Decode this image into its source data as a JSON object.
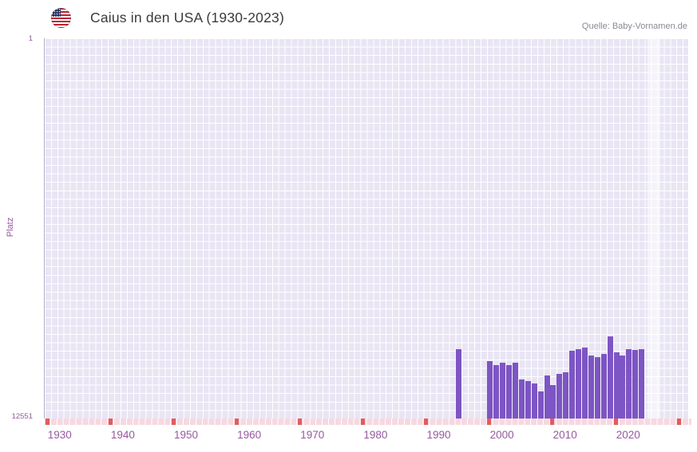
{
  "header": {
    "title": "Caius in den USA (1930-2023)",
    "source": "Quelle: Baby-Vornamen.de",
    "flag_icon": "us-flag-icon"
  },
  "chart_data": {
    "type": "bar",
    "title": "Caius in den USA (1930-2023)",
    "xlabel": "",
    "ylabel": "Platz",
    "y_axis_inverted": true,
    "ylim": [
      1,
      12551
    ],
    "y_tick_labels": [
      "1",
      "12551"
    ],
    "x_ticks": [
      1930,
      1940,
      1950,
      1960,
      1970,
      1980,
      1990,
      2000,
      2010,
      2020
    ],
    "x_range": [
      1927.5,
      2029.5
    ],
    "grid": true,
    "legend": "none",
    "series": [
      {
        "name": "Platz",
        "points": [
          {
            "year": 1993,
            "rank": 10250
          },
          {
            "year": 1998,
            "rank": 10650
          },
          {
            "year": 1999,
            "rank": 10800
          },
          {
            "year": 2000,
            "rank": 10700
          },
          {
            "year": 2001,
            "rank": 10780
          },
          {
            "year": 2002,
            "rank": 10700
          },
          {
            "year": 2003,
            "rank": 11250
          },
          {
            "year": 2004,
            "rank": 11320
          },
          {
            "year": 2005,
            "rank": 11400
          },
          {
            "year": 2006,
            "rank": 11650
          },
          {
            "year": 2007,
            "rank": 11120
          },
          {
            "year": 2008,
            "rank": 11450
          },
          {
            "year": 2009,
            "rank": 11080
          },
          {
            "year": 2010,
            "rank": 11020
          },
          {
            "year": 2011,
            "rank": 10320
          },
          {
            "year": 2012,
            "rank": 10260
          },
          {
            "year": 2013,
            "rank": 10200
          },
          {
            "year": 2014,
            "rank": 10460
          },
          {
            "year": 2015,
            "rank": 10520
          },
          {
            "year": 2016,
            "rank": 10420
          },
          {
            "year": 2017,
            "rank": 9850
          },
          {
            "year": 2018,
            "rank": 10360
          },
          {
            "year": 2019,
            "rank": 10470
          },
          {
            "year": 2020,
            "rank": 10260
          },
          {
            "year": 2021,
            "rank": 10300
          },
          {
            "year": 2022,
            "rank": 10260
          }
        ]
      }
    ],
    "no_data_tick_years": [
      1928,
      1938,
      1948,
      1958,
      1968,
      1978,
      1988,
      1998,
      2008,
      2018,
      2028
    ],
    "highlight_band": {
      "start_year": 2022.95,
      "end_year": 2024.95
    },
    "colors": {
      "bar": "#7d55c4",
      "plot_background": "#e9e5f4",
      "grid_line": "#ffffff",
      "axis_label": "#96589f",
      "no_data_strip": "#f6d9e0",
      "no_data_tick": "#e25c5c",
      "title_text": "#3b3b3b",
      "source_text": "#8a8894"
    }
  }
}
